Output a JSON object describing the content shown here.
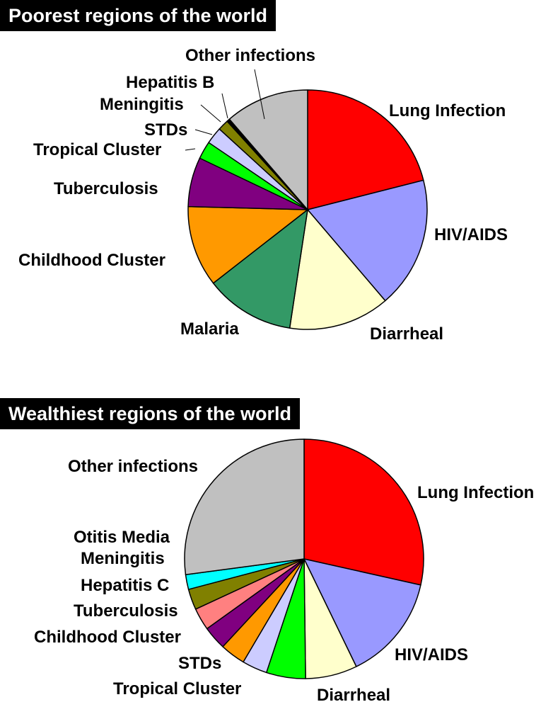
{
  "chart_data": [
    {
      "type": "pie",
      "title": "Poorest regions of the world",
      "slices": [
        {
          "label": "Lung Infection",
          "value": 20.2,
          "color": "#ff0000"
        },
        {
          "label": "HIV/AIDS",
          "value": 17.0,
          "color": "#9999ff"
        },
        {
          "label": "Diarrheal",
          "value": 13.1,
          "color": "#ffffcc"
        },
        {
          "label": "Malaria",
          "value": 11.6,
          "color": "#339966"
        },
        {
          "label": "Childhood Cluster",
          "value": 10.5,
          "color": "#ff9900"
        },
        {
          "label": "Tuberculosis",
          "value": 6.4,
          "color": "#800080"
        },
        {
          "label": "Tropical Cluster",
          "value": 2.3,
          "color": "#00ff00"
        },
        {
          "label": "STDs",
          "value": 2.2,
          "color": "#ccccff"
        },
        {
          "label": "Meningitis",
          "value": 1.4,
          "color": "#808000"
        },
        {
          "label": "Hepatitis B",
          "value": 0.4,
          "color": "#000000"
        },
        {
          "label": "Other infections",
          "value": 10.9,
          "color": "#c0c0c0"
        }
      ]
    },
    {
      "type": "pie",
      "title": "Wealthiest regions of the world",
      "slices": [
        {
          "label": "Lung Infection",
          "value": 28.5,
          "color": "#ff0000"
        },
        {
          "label": "HIV/AIDS",
          "value": 14.3,
          "color": "#9999ff"
        },
        {
          "label": "Diarrheal",
          "value": 7.0,
          "color": "#ffffcc"
        },
        {
          "label": "Tropical Cluster",
          "value": 5.3,
          "color": "#00ff00"
        },
        {
          "label": "STDs",
          "value": 3.4,
          "color": "#ccccff"
        },
        {
          "label": "Childhood Cluster",
          "value": 3.4,
          "color": "#ff9900"
        },
        {
          "label": "Tuberculosis",
          "value": 3.2,
          "color": "#800080"
        },
        {
          "label": "Hepatitis C",
          "value": 3.0,
          "color": "#ff8080"
        },
        {
          "label": "Meningitis",
          "value": 2.8,
          "color": "#808000"
        },
        {
          "label": "Otitis Media",
          "value": 2.0,
          "color": "#00ffff"
        },
        {
          "label": "Other infections",
          "value": 27.1,
          "color": "#c0c0c0"
        }
      ]
    }
  ]
}
